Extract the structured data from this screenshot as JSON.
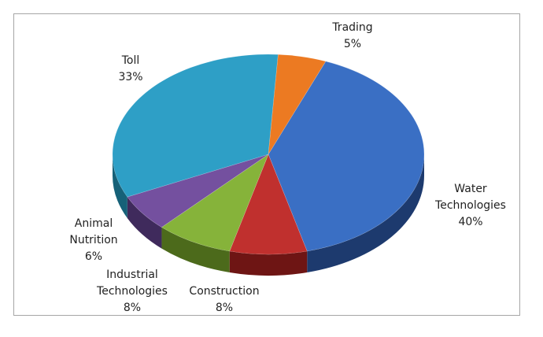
{
  "chart_data": {
    "type": "pie",
    "style": "3d",
    "title": "",
    "slices": [
      {
        "name": "Water Technologies",
        "value": 40,
        "label": "40%",
        "color": "#3a6fc4",
        "side_color": "#1d3a6e"
      },
      {
        "name": "Construction",
        "value": 8,
        "label": "8%",
        "color": "#c0302e",
        "side_color": "#6e1514"
      },
      {
        "name": "Industrial Technologies",
        "value": 8,
        "label": "8%",
        "color": "#86b33a",
        "side_color": "#4c6a1b"
      },
      {
        "name": "Animal Nutrition",
        "value": 6,
        "label": "6%",
        "color": "#74509f",
        "side_color": "#3f2a5c"
      },
      {
        "name": "Toll",
        "value": 33,
        "label": "33%",
        "color": "#2e9fc6",
        "side_color": "#166178"
      },
      {
        "name": "Trading",
        "value": 5,
        "label": "5%",
        "color": "#ec7a22",
        "side_color": "#8f420c"
      }
    ],
    "labels": [
      {
        "lines": [
          "Water",
          "Technologies",
          "40%"
        ]
      },
      {
        "lines": [
          "Construction",
          "8%"
        ]
      },
      {
        "lines": [
          "Industrial",
          "Technologies",
          "8%"
        ]
      },
      {
        "lines": [
          "Animal",
          "Nutrition",
          "6%"
        ]
      },
      {
        "lines": [
          "Toll",
          "33%"
        ]
      },
      {
        "lines": [
          "Trading",
          "5%"
        ]
      }
    ],
    "legend": "none",
    "data_labels": "outside"
  }
}
